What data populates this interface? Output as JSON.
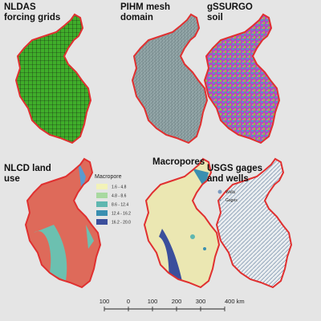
{
  "panels": [
    {
      "title": [
        "NLDAS",
        "forcing grids"
      ]
    },
    {
      "title": [
        "PIHM mesh",
        "domain"
      ]
    },
    {
      "title": [
        "gSSURGO",
        "soil"
      ]
    },
    {
      "title": [
        "NLCD land",
        "use"
      ]
    },
    {
      "title": [
        "Macropores"
      ]
    },
    {
      "title": [
        "USGS gages",
        "and wells"
      ]
    }
  ],
  "macropore_legend": {
    "title": "Macropore",
    "classes": [
      "1.6 - 4.8",
      "4.8 - 8.6",
      "8.6 - 12.4",
      "12.4 - 16.2",
      "16.2 - 20.0"
    ]
  },
  "gages_legend": {
    "items": [
      "Wells",
      "Gages"
    ]
  },
  "scale_bar": {
    "labels": [
      "100",
      "0",
      "100",
      "200",
      "300",
      "400 km"
    ]
  }
}
